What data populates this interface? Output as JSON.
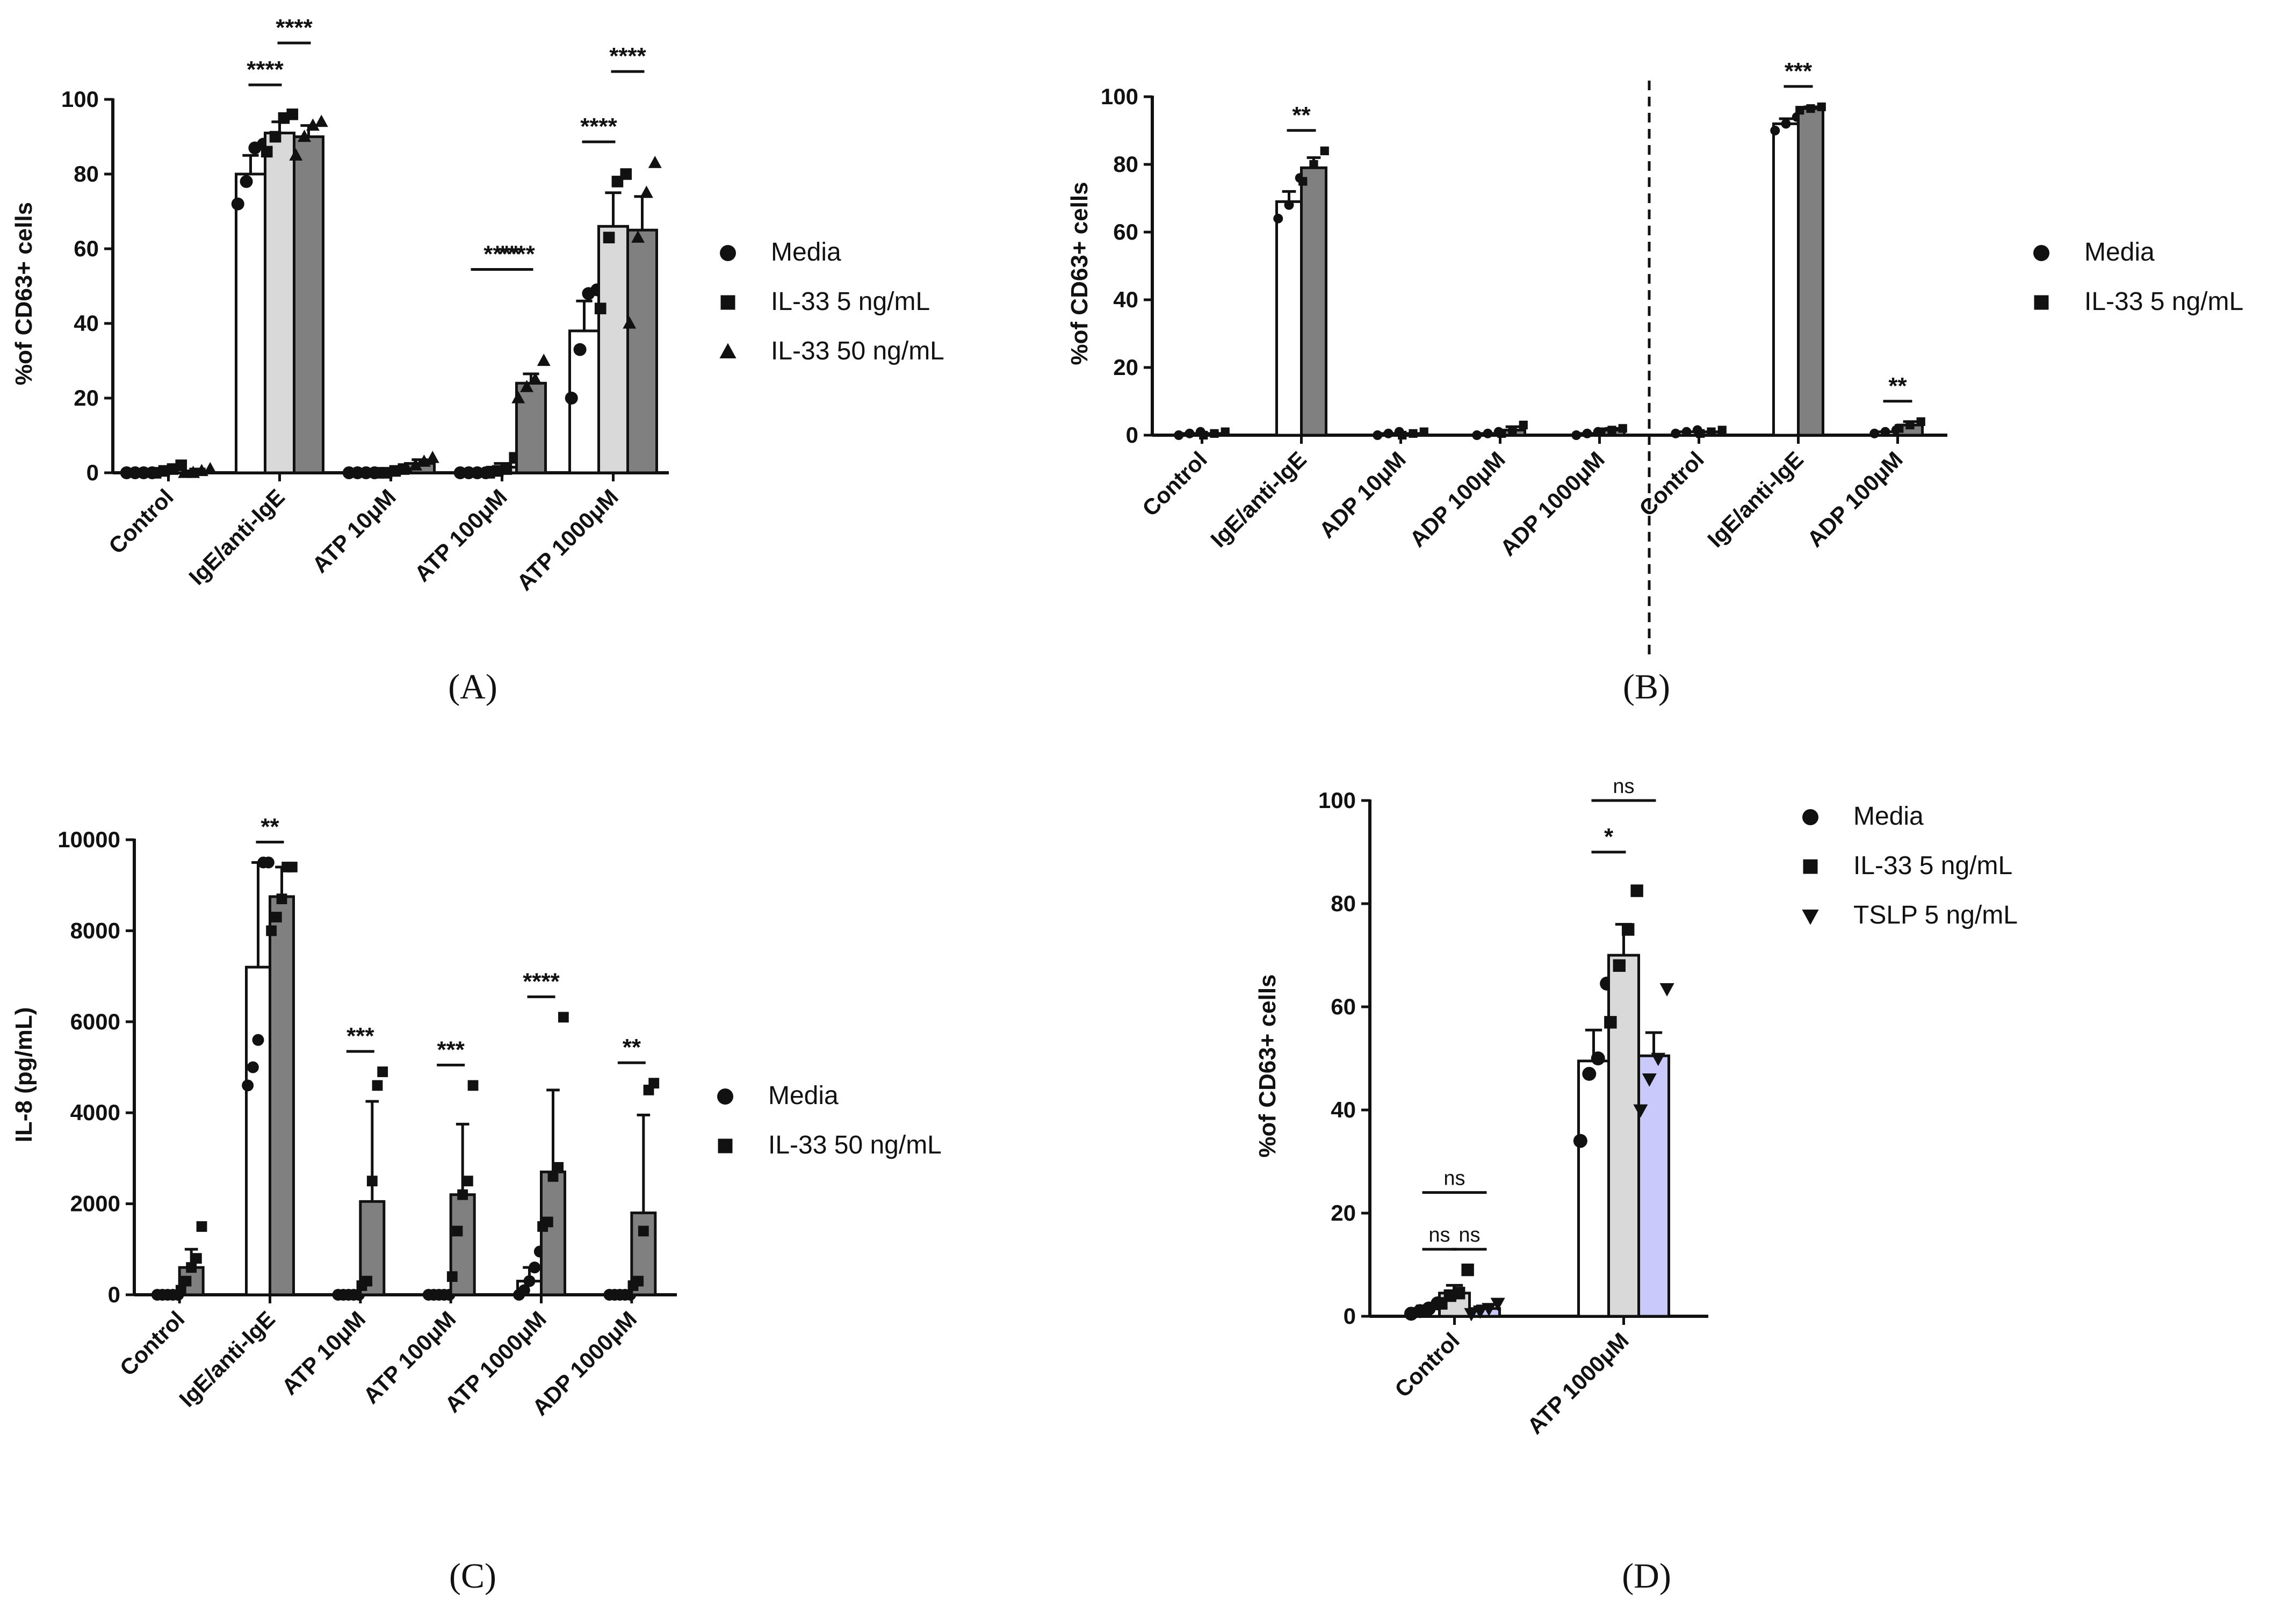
{
  "colors": {
    "white": "#ffffff",
    "light": "#d9d9d9",
    "dark": "#808080",
    "blue": "#c9c9fb",
    "ink": "#111111"
  },
  "chart_data": [
    {
      "panel": "A",
      "label": "(A)",
      "type": "bar",
      "ylabel": "%of CD63+ cells",
      "ylim": [
        0,
        100
      ],
      "yticks": [
        "0",
        "20",
        "40",
        "60",
        "80",
        "100"
      ],
      "categories": [
        "Control",
        "IgE/anti-IgE",
        "ATP 10μM",
        "ATP 100μM",
        "ATP 1000μM"
      ],
      "series": [
        {
          "name": "Media",
          "marker": "circle",
          "fill": "white",
          "values": [
            0,
            80,
            0,
            0,
            38
          ],
          "err": [
            0,
            5,
            0,
            0,
            8
          ],
          "points": [
            [
              0,
              0,
              0,
              0
            ],
            [
              72,
              78,
              87,
              88
            ],
            [
              0,
              0,
              0,
              0
            ],
            [
              0,
              0,
              0,
              0
            ],
            [
              20,
              33,
              48,
              49
            ]
          ]
        },
        {
          "name": "IL-33 5 ng/mL",
          "marker": "square",
          "fill": "light",
          "values": [
            1,
            91,
            0.5,
            1.5,
            66
          ],
          "err": [
            0.5,
            3,
            0.5,
            1,
            9
          ],
          "points": [
            [
              0,
              0.5,
              1,
              2
            ],
            [
              86,
              90,
              95,
              96
            ],
            [
              0,
              0,
              0.5,
              1
            ],
            [
              0,
              0.5,
              1,
              4
            ],
            [
              44,
              63,
              78,
              80
            ]
          ]
        },
        {
          "name": "IL-33 50 ng/mL",
          "marker": "triangle",
          "fill": "dark",
          "values": [
            0.5,
            90,
            2.5,
            24,
            65
          ],
          "err": [
            0.5,
            3,
            1,
            2.5,
            9
          ],
          "points": [
            [
              0,
              0,
              0.5,
              1
            ],
            [
              85,
              90,
              93,
              94
            ],
            [
              1,
              2,
              3,
              4
            ],
            [
              20,
              23,
              25,
              30
            ],
            [
              40,
              63,
              75,
              83
            ]
          ]
        }
      ],
      "significance": [
        {
          "category": 1,
          "from": 0,
          "to": 1,
          "label": "****"
        },
        {
          "category": 1,
          "from": 1,
          "to": 2,
          "label": "****"
        },
        {
          "category": 3,
          "from": 0,
          "to": 2,
          "label": "****"
        },
        {
          "category": 3,
          "from": 1,
          "to": 2,
          "label": "****"
        },
        {
          "category": 4,
          "from": 0,
          "to": 1,
          "label": "****"
        },
        {
          "category": 4,
          "from": 1,
          "to": 2,
          "label": "****"
        }
      ]
    },
    {
      "panel": "B",
      "label": "(B)",
      "type": "bar",
      "ylabel": "%of CD63+ cells",
      "ylim": [
        0,
        100
      ],
      "yticks": [
        "0",
        "20",
        "40",
        "60",
        "80",
        "100"
      ],
      "categories": [
        "Control",
        "IgE/anti-IgE",
        "ADP 10μM",
        "ADP 100μM",
        "ADP 1000μM",
        "Control",
        "IgE/anti-IgE",
        "ADP 100μM"
      ],
      "divider_after_category": 4,
      "series": [
        {
          "name": "Media",
          "marker": "circle",
          "fill": "white",
          "values": [
            0.5,
            69,
            0.5,
            0.5,
            0.5,
            1,
            92,
            1
          ],
          "err": [
            0,
            3,
            0,
            0,
            0,
            0,
            1.5,
            0
          ],
          "points": [
            [
              0,
              0.5,
              1
            ],
            [
              64,
              68,
              76
            ],
            [
              0,
              0.5,
              1
            ],
            [
              0,
              0.5,
              1
            ],
            [
              0,
              0.5,
              1
            ],
            [
              0.5,
              1,
              1.5
            ],
            [
              90,
              92,
              94
            ],
            [
              0.5,
              1,
              1.5
            ]
          ]
        },
        {
          "name": "IL-33 5 ng/mL",
          "marker": "square",
          "fill": "dark",
          "values": [
            0.5,
            79,
            0.5,
            1.5,
            1.5,
            1,
            96.5,
            3
          ],
          "err": [
            0,
            3,
            0,
            1,
            0.5,
            0,
            0.5,
            1
          ],
          "points": [
            [
              0,
              0.5,
              1
            ],
            [
              75,
              80,
              84
            ],
            [
              0,
              0.5,
              1
            ],
            [
              0.5,
              1,
              3
            ],
            [
              1,
              1.5,
              2
            ],
            [
              0.5,
              1,
              1.5
            ],
            [
              96,
              96.5,
              97
            ],
            [
              2,
              3,
              4
            ]
          ]
        }
      ],
      "significance": [
        {
          "category": 1,
          "from": 0,
          "to": 1,
          "label": "**"
        },
        {
          "category": 6,
          "from": 0,
          "to": 1,
          "label": "***"
        },
        {
          "category": 7,
          "from": 0,
          "to": 1,
          "label": "**"
        }
      ]
    },
    {
      "panel": "C",
      "label": "(C)",
      "type": "bar",
      "ylabel": "IL-8 (pg/mL)",
      "ylim": [
        0,
        10000
      ],
      "yticks": [
        "0",
        "2000",
        "4000",
        "6000",
        "8000",
        "10000"
      ],
      "categories": [
        "Control",
        "IgE/anti-IgE",
        "ATP 10μM",
        "ATP 100μM",
        "ATP 1000μM",
        "ADP 1000μM"
      ],
      "series": [
        {
          "name": "Media",
          "marker": "circle",
          "fill": "white",
          "values": [
            0,
            7200,
            0,
            0,
            300,
            0
          ],
          "err": [
            0,
            2300,
            0,
            0,
            300,
            0
          ],
          "points": [
            [
              0,
              0,
              0,
              0,
              0
            ],
            [
              4600,
              5000,
              5600,
              9500,
              9500
            ],
            [
              0,
              0,
              0,
              0,
              0
            ],
            [
              0,
              0,
              0,
              0,
              0
            ],
            [
              0,
              100,
              300,
              600,
              950
            ],
            [
              0,
              0,
              0,
              0,
              0
            ]
          ]
        },
        {
          "name": "IL-33 50 ng/mL",
          "marker": "square",
          "fill": "dark",
          "values": [
            600,
            8750,
            2050,
            2200,
            2700,
            1800
          ],
          "err": [
            400,
            650,
            2200,
            1550,
            1800,
            2150
          ],
          "points": [
            [
              100,
              300,
              600,
              800,
              1500
            ],
            [
              8000,
              8300,
              8700,
              9400,
              9400
            ],
            [
              200,
              300,
              2500,
              4600,
              4900
            ],
            [
              400,
              1400,
              2200,
              2500,
              4600
            ],
            [
              1500,
              1600,
              2600,
              2800,
              6100
            ],
            [
              200,
              300,
              1400,
              4500,
              4650
            ]
          ]
        }
      ],
      "significance": [
        {
          "category": 1,
          "from": 0,
          "to": 1,
          "label": "**"
        },
        {
          "category": 2,
          "from": 0,
          "to": 1,
          "label": "***"
        },
        {
          "category": 3,
          "from": 0,
          "to": 1,
          "label": "***"
        },
        {
          "category": 4,
          "from": 0,
          "to": 1,
          "label": "****"
        },
        {
          "category": 5,
          "from": 0,
          "to": 1,
          "label": "**"
        }
      ]
    },
    {
      "panel": "D",
      "label": "(D)",
      "type": "bar",
      "ylabel": "%of CD63+ cells",
      "ylim": [
        0,
        100
      ],
      "yticks": [
        "0",
        "20",
        "40",
        "60",
        "80",
        "100"
      ],
      "categories": [
        "Control",
        "ATP 1000μM"
      ],
      "series": [
        {
          "name": "Media",
          "marker": "circle",
          "fill": "white",
          "values": [
            1.5,
            49.5
          ],
          "err": [
            0.5,
            6
          ],
          "points": [
            [
              0.5,
              1,
              1.5,
              2.5
            ],
            [
              34,
              47,
              50,
              64.5
            ]
          ]
        },
        {
          "name": "IL-33 5 ng/mL",
          "marker": "square",
          "fill": "light",
          "values": [
            4.5,
            70
          ],
          "err": [
            1.5,
            6
          ],
          "points": [
            [
              2.5,
              4,
              4.5,
              9
            ],
            [
              57,
              68,
              75,
              82.5
            ]
          ]
        },
        {
          "name": "TSLP 5 ng/mL",
          "marker": "triangle-down",
          "fill": "blue",
          "values": [
            1.5,
            50.5
          ],
          "err": [
            0.5,
            4.5
          ],
          "points": [
            [
              0.5,
              1,
              1.5,
              2.5
            ],
            [
              40,
              46,
              50,
              63.5
            ]
          ]
        }
      ],
      "significance": [
        {
          "category": 0,
          "from": 0,
          "to": 1,
          "label": "ns"
        },
        {
          "category": 0,
          "from": 1,
          "to": 2,
          "label": "ns"
        },
        {
          "category": 0,
          "from": 0,
          "to": 2,
          "label": "ns"
        },
        {
          "category": 1,
          "from": 0,
          "to": 1,
          "label": "*"
        },
        {
          "category": 1,
          "from": 0,
          "to": 2,
          "label": "ns"
        }
      ]
    }
  ]
}
